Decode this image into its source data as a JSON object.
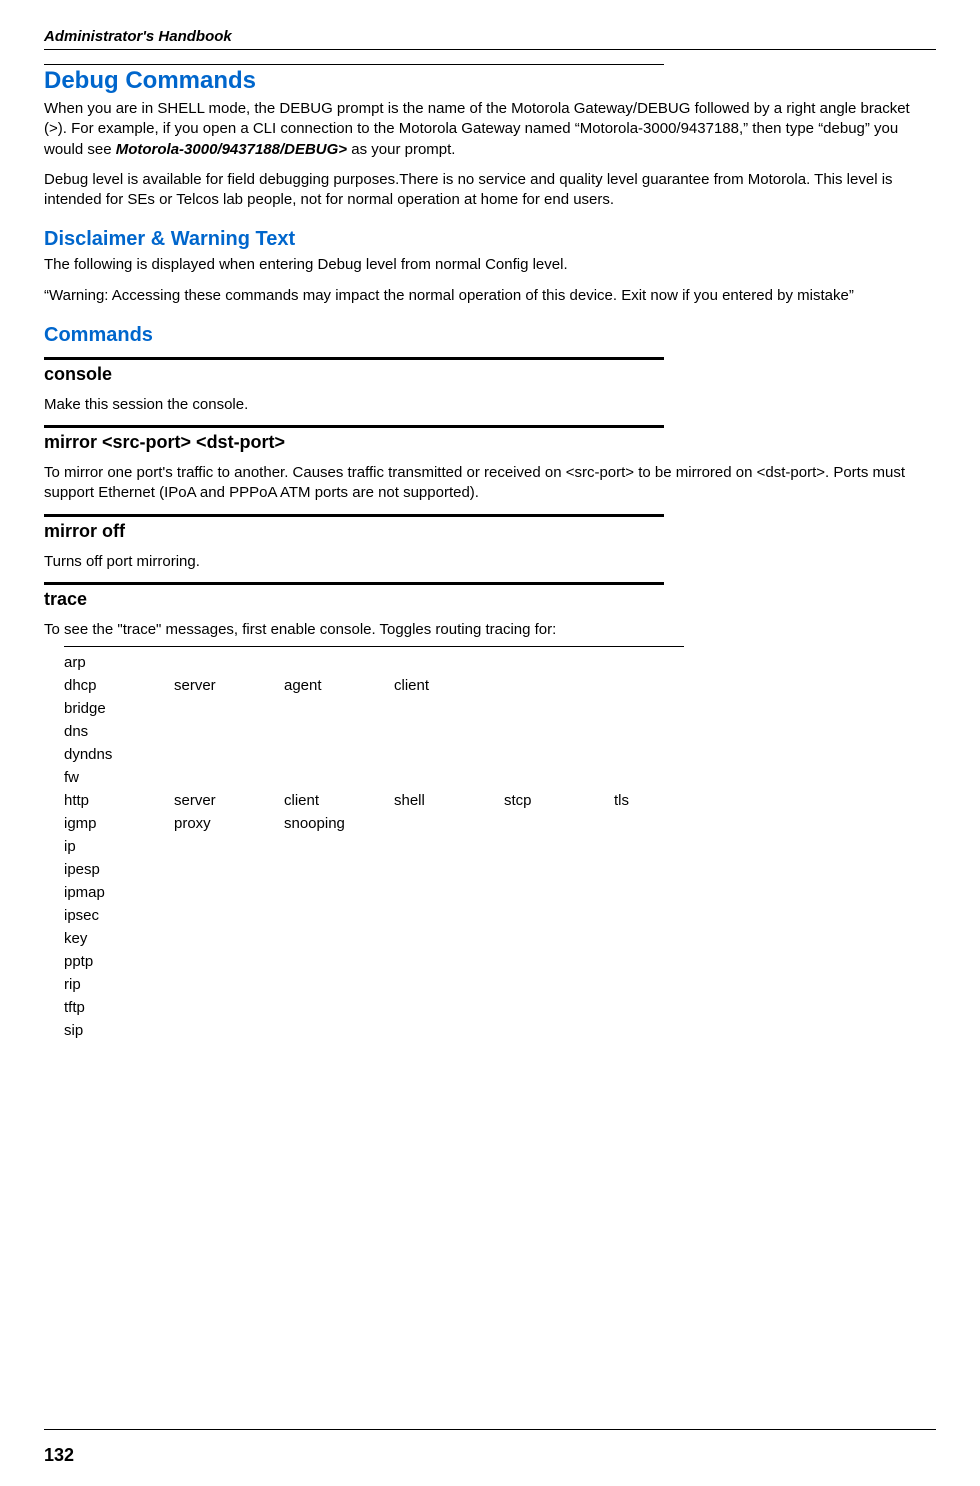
{
  "header": {
    "book_title": "Administrator's Handbook"
  },
  "h1": "Debug Commands",
  "p1": "When you are in SHELL mode, the DEBUG prompt is the name of the Motorola Gateway/DEBUG followed by a right angle bracket (>). For example, if you open a CLI connection to the Motorola Gateway named “Motorola-3000/9437188,” then type “debug” you would see ",
  "p1_prompt": "Motorola-3000/9437188/DEBUG>",
  "p1_tail": " as your prompt.",
  "p2": "Debug level is available for field debugging purposes.There is no service and quality level guarantee from Motorola. This level is intended for SEs or Telcos lab people, not for normal operation at home for end users.",
  "h2_disclaimer": "Disclaimer & Warning Text",
  "disclaimer_p1": "The following is displayed when entering Debug level from normal Config level.",
  "disclaimer_p2": "“Warning: Accessing these commands may impact the normal operation of this device. Exit now if you entered by mistake”",
  "h2_commands": "Commands",
  "cmd1": {
    "title": "console",
    "desc": "Make this session the console."
  },
  "cmd2": {
    "title": "mirror <src-port> <dst-port>",
    "desc": "To mirror one port's traffic to another. Causes traffic transmitted or received on <src-port> to be mirrored on <dst-port>. Ports must support Ethernet (IPoA and PPPoA ATM ports are not supported)."
  },
  "cmd3": {
    "title": "mirror off",
    "desc": "Turns off port mirroring."
  },
  "cmd4": {
    "title": "trace",
    "desc": "To see the \"trace\" messages, first enable console. Toggles routing tracing for:"
  },
  "trace_rows": [
    [
      "arp",
      "",
      "",
      "",
      "",
      ""
    ],
    [
      "dhcp",
      "server",
      "agent",
      "client",
      "",
      ""
    ],
    [
      "bridge",
      "",
      "",
      "",
      "",
      ""
    ],
    [
      "dns",
      "",
      "",
      "",
      "",
      ""
    ],
    [
      "dyndns",
      "",
      "",
      "",
      "",
      ""
    ],
    [
      "fw",
      "",
      "",
      "",
      "",
      ""
    ],
    [
      "http",
      "server",
      "client",
      "shell",
      "stcp",
      "tls"
    ],
    [
      "igmp",
      "proxy",
      "snooping",
      "",
      "",
      ""
    ],
    [
      "ip",
      "",
      "",
      "",
      "",
      ""
    ],
    [
      "ipesp",
      "",
      "",
      "",
      "",
      ""
    ],
    [
      "ipmap",
      "",
      "",
      "",
      "",
      ""
    ],
    [
      "ipsec",
      "",
      "",
      "",
      "",
      ""
    ],
    [
      "key",
      "",
      "",
      "",
      "",
      ""
    ],
    [
      "pptp",
      "",
      "",
      "",
      "",
      ""
    ],
    [
      "rip",
      "",
      "",
      "",
      "",
      ""
    ],
    [
      "tftp",
      "",
      "",
      "",
      "",
      ""
    ],
    [
      "sip",
      "",
      "",
      "",
      "",
      ""
    ]
  ],
  "page_number": "132",
  "colors": {
    "heading": "#0066cc",
    "text": "#000000",
    "background": "#ffffff"
  },
  "typography": {
    "body_fontsize": 15,
    "h1_fontsize": 24,
    "h2_fontsize": 20,
    "cmd_fontsize": 18
  }
}
